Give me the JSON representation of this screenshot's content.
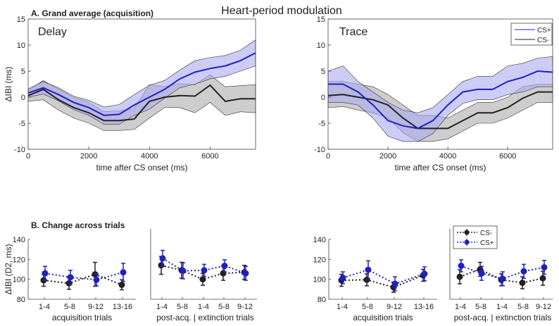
{
  "figure": {
    "title": "Heart-period modulation",
    "panel_a_label": "A. Grand average (acquisition)",
    "panel_b_label": "B. Change across trials"
  },
  "colors": {
    "cs_plus": "#1f1fc8",
    "cs_plus_band": "#aaaaf0",
    "cs_minus": "#222222",
    "cs_minus_band": "#c4c4c4"
  },
  "chart_data": [
    {
      "id": "delay-timecourse",
      "type": "line",
      "subtitle": "Delay",
      "xlabel": "time after CS onset (ms)",
      "ylabel": "ΔIBI (ms)",
      "xlim": [
        0,
        7500
      ],
      "ylim": [
        -10,
        15
      ],
      "xticks": [
        "0",
        "2000",
        "4000",
        "6000"
      ],
      "xtick_values": [
        0,
        2000,
        4000,
        6000
      ],
      "yticks": [
        "-10",
        "-5",
        "0",
        "5",
        "10",
        "15"
      ],
      "ytick_values": [
        -10,
        -5,
        0,
        5,
        10,
        15
      ],
      "series": [
        {
          "name": "CS+",
          "x": [
            0,
            500,
            1000,
            1500,
            2000,
            2500,
            3000,
            3500,
            4000,
            4500,
            5000,
            5500,
            6000,
            6500,
            7000,
            7500
          ],
          "values": [
            0.8,
            1.8,
            0.5,
            -1,
            -2,
            -3.5,
            -3.3,
            -1.5,
            0,
            1.5,
            3.5,
            4.8,
            5.5,
            6,
            7,
            8.5
          ],
          "lower": [
            0,
            0.6,
            -0.7,
            -2.4,
            -3.5,
            -5.2,
            -5.2,
            -3.5,
            -2.3,
            -0.2,
            1.8,
            2.5,
            3.5,
            4,
            5,
            6
          ],
          "upper": [
            1.6,
            3,
            1.8,
            0.2,
            -0.6,
            -1.9,
            -1.4,
            0.5,
            2.3,
            3.2,
            5.2,
            7,
            7.6,
            8,
            9,
            11
          ]
        },
        {
          "name": "CS-",
          "x": [
            0,
            500,
            1000,
            1500,
            2000,
            2500,
            3000,
            3500,
            4000,
            4500,
            5000,
            5500,
            6000,
            6500,
            7000,
            7500
          ],
          "values": [
            0.3,
            1.5,
            -0.5,
            -2,
            -3,
            -4.5,
            -4.5,
            -4.2,
            -0.8,
            0,
            0.3,
            0.2,
            2.3,
            -0.8,
            -0.3,
            -0.3
          ],
          "lower": [
            -0.8,
            -0.5,
            -2.5,
            -4,
            -5,
            -6.4,
            -6.4,
            -6.2,
            -4,
            -2,
            -2,
            -3,
            -1,
            -3.5,
            -2.8,
            -3
          ],
          "upper": [
            1.3,
            3.2,
            1.5,
            0,
            -1,
            -2.8,
            -2.6,
            -2.2,
            2.4,
            2,
            2.6,
            2.4,
            4.3,
            2,
            2.2,
            2.4
          ]
        }
      ]
    },
    {
      "id": "trace-timecourse",
      "type": "line",
      "subtitle": "Trace",
      "xlabel": "time after CS onset (ms)",
      "ylabel": "",
      "xlim": [
        0,
        7500
      ],
      "ylim": [
        -10,
        15
      ],
      "xticks": [
        "0",
        "2000",
        "4000",
        "6000"
      ],
      "xtick_values": [
        0,
        2000,
        4000,
        6000
      ],
      "yticks": [
        "-10",
        "-5",
        "0",
        "5",
        "10",
        "15"
      ],
      "ytick_values": [
        -10,
        -5,
        0,
        5,
        10,
        15
      ],
      "legend": [
        "CS+",
        "CS-"
      ],
      "series": [
        {
          "name": "CS+",
          "x": [
            0,
            500,
            1000,
            1500,
            2000,
            2500,
            3000,
            3500,
            4000,
            4500,
            5000,
            5500,
            6000,
            6500,
            7000,
            7500
          ],
          "values": [
            2.5,
            2.5,
            1,
            -1.5,
            -4.5,
            -5.5,
            -6,
            -4.5,
            -1.5,
            1,
            1.5,
            1.5,
            3,
            3.8,
            5,
            4.8
          ],
          "lower": [
            -1,
            -1,
            -1.5,
            -4,
            -7.5,
            -8.5,
            -8.5,
            -7,
            -3.5,
            -1.2,
            -0.5,
            -0.5,
            0.5,
            1,
            2,
            2
          ],
          "upper": [
            5,
            6,
            3,
            1,
            -1,
            -2.5,
            -3,
            -2,
            0.5,
            3,
            4,
            4,
            6,
            6.5,
            7.5,
            7.8
          ]
        },
        {
          "name": "CS-",
          "x": [
            0,
            500,
            1000,
            1500,
            2000,
            2500,
            3000,
            3500,
            4000,
            4500,
            5000,
            5500,
            6000,
            6500,
            7000,
            7500
          ],
          "values": [
            0.3,
            0.5,
            0,
            -0.5,
            -1.5,
            -4,
            -6,
            -6,
            -6,
            -4.5,
            -3,
            -3,
            -2,
            -0.2,
            1,
            1
          ],
          "lower": [
            -2,
            -1.8,
            -2.5,
            -3,
            -4,
            -6.8,
            -8.5,
            -8.5,
            -8,
            -6.5,
            -5,
            -5,
            -4,
            -2.5,
            -1,
            -1
          ],
          "upper": [
            3,
            3,
            2.5,
            2,
            0.5,
            -1.5,
            -3.5,
            -3.5,
            -4,
            -2.5,
            -1,
            -1,
            0,
            2,
            2.5,
            2.5
          ]
        }
      ]
    },
    {
      "id": "delay-acq-trials",
      "type": "line",
      "xlabel": "acquisition trials",
      "ylabel": "ΔIBI (D2, ms)",
      "ylim": [
        80,
        140
      ],
      "yticks": [
        "80",
        "100",
        "120",
        "140"
      ],
      "ytick_values": [
        80,
        100,
        120,
        140
      ],
      "categories": [
        "1-4",
        "5-8",
        "9-12",
        "13-16"
      ],
      "series": [
        {
          "name": "CS-",
          "values": [
            99,
            96,
            105,
            94.5
          ],
          "errors": [
            6,
            6,
            12,
            5
          ]
        },
        {
          "name": "CS+",
          "values": [
            106,
            102,
            99.5,
            107
          ],
          "errors": [
            7,
            7,
            6,
            9
          ]
        }
      ]
    },
    {
      "id": "delay-ext-trials",
      "type": "line",
      "xlabel": "post-acq. |      extinction trials",
      "ylabel": "",
      "ylim": [
        80,
        140
      ],
      "categories": [
        "1-4",
        "5-8",
        "1-4",
        "5-8",
        "9-12"
      ],
      "series": [
        {
          "name": "CS-",
          "values": [
            114,
            109,
            100,
            106,
            107
          ],
          "errors": [
            9,
            8,
            6,
            7,
            7
          ]
        },
        {
          "name": "CS+",
          "values": [
            121,
            108.5,
            109,
            113.5,
            106
          ],
          "errors": [
            8,
            8,
            6,
            6,
            7
          ]
        }
      ]
    },
    {
      "id": "trace-acq-trials",
      "type": "line",
      "xlabel": "acquisition trials",
      "ylabel": "",
      "ylim": [
        80,
        140
      ],
      "yticks": [
        "80",
        "100",
        "120",
        "140"
      ],
      "ytick_values": [
        80,
        100,
        120,
        140
      ],
      "categories": [
        "1-4",
        "5-8",
        "9-12",
        "13-16"
      ],
      "series": [
        {
          "name": "CS-",
          "values": [
            99,
            99.5,
            92,
            104
          ],
          "errors": [
            6,
            6,
            5,
            6
          ]
        },
        {
          "name": "CS+",
          "values": [
            101.5,
            109.5,
            95.5,
            105.5
          ],
          "errors": [
            6,
            9,
            7,
            7
          ]
        }
      ]
    },
    {
      "id": "trace-ext-trials",
      "type": "line",
      "xlabel": "post-acq. |      extinction trials",
      "ylabel": "",
      "ylim": [
        80,
        140
      ],
      "categories": [
        "1-4",
        "5-8",
        "1-4",
        "5-8",
        "9-12"
      ],
      "legend": [
        "CS-",
        "CS+"
      ],
      "series": [
        {
          "name": "CS-",
          "values": [
            102.5,
            110,
            99.5,
            96.5,
            101
          ],
          "errors": [
            7,
            7,
            6,
            6,
            7
          ]
        },
        {
          "name": "CS+",
          "values": [
            113.5,
            106,
            100.5,
            108,
            112
          ],
          "errors": [
            6,
            7,
            7,
            7,
            7
          ]
        }
      ]
    }
  ]
}
